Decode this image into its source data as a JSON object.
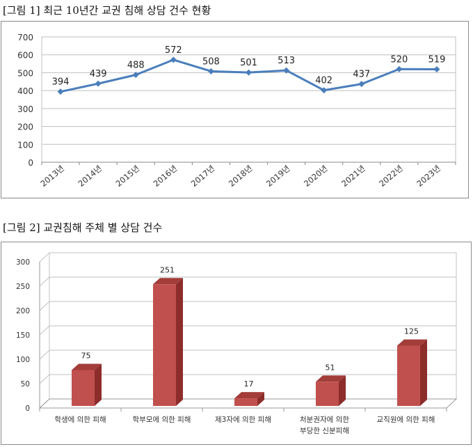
{
  "figure1": {
    "caption": "[그림 1] 최근 10년간 교권 침해 상담 건수 현황"
  },
  "figure2": {
    "caption": "[그림 2] 교권침해 주체 별 상담 건수"
  },
  "chart_data": [
    {
      "type": "line",
      "title": "",
      "xlabel": "",
      "ylabel": "",
      "categories": [
        "2013년",
        "2014년",
        "2015년",
        "2016년",
        "2017년",
        "2018년",
        "2019년",
        "2020년",
        "2021년",
        "2022년",
        "2023년"
      ],
      "values": [
        394,
        439,
        488,
        572,
        508,
        501,
        513,
        402,
        437,
        520,
        519
      ],
      "data_labels": [
        "394",
        "439",
        "488",
        "572",
        "508",
        "501",
        "513",
        "402",
        "437",
        "520",
        "519"
      ],
      "ylim": [
        0,
        700
      ],
      "yticks": [
        "0",
        "100",
        "200",
        "300",
        "400",
        "500",
        "600",
        "700"
      ],
      "grid": true,
      "colors": {
        "line": "#4a7ebb",
        "grid": "#bfbfbf"
      }
    },
    {
      "type": "bar",
      "title": "",
      "xlabel": "",
      "ylabel": "",
      "categories": [
        [
          "학생에 의한 피해"
        ],
        [
          "학부모에 의한 피해"
        ],
        [
          "제3자에 의한 피해"
        ],
        [
          "처분권자에 의한",
          "부당한 신분피해"
        ],
        [
          "교직원에 의한 피해"
        ]
      ],
      "values": [
        75,
        251,
        17,
        51,
        125
      ],
      "data_labels": [
        "75",
        "251",
        "17",
        "51",
        "125"
      ],
      "ylim": [
        0,
        300
      ],
      "yticks": [
        "0",
        "50",
        "100",
        "150",
        "200",
        "250",
        "300"
      ],
      "grid": true,
      "colors": {
        "bar_front": "#c0504d",
        "bar_side": "#8c2d2b",
        "bar_top": "#a33d3a",
        "grid": "#c0c0c0"
      }
    }
  ]
}
